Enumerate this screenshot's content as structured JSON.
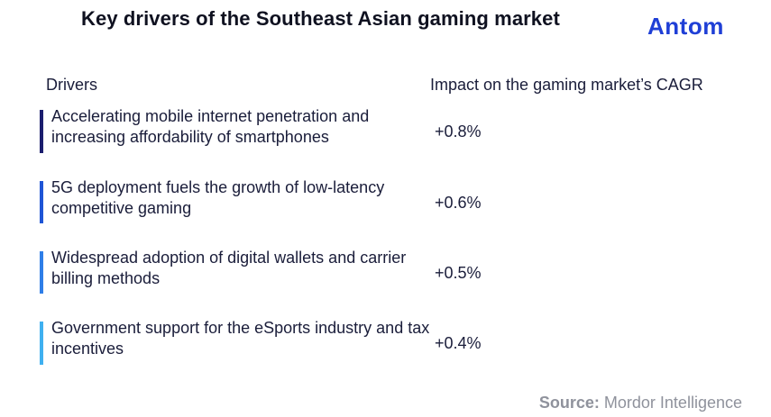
{
  "title": "Key drivers of the Southeast Asian gaming market",
  "brand": "Antom",
  "headers": {
    "drivers": "Drivers",
    "impact": "Impact on the gaming market’s CAGR"
  },
  "rows": [
    {
      "driver": "Accelerating mobile internet penetration and increasing affordability of smartphones",
      "impact": "+0.8%",
      "color": "#1b1e6e"
    },
    {
      "driver": "5G deployment fuels the growth of low-latency competitive gaming",
      "impact": "+0.6%",
      "color": "#1f55d6"
    },
    {
      "driver": "Widespread adoption of digital wallets and carrier billing methods",
      "impact": "+0.5%",
      "color": "#2f7ee8"
    },
    {
      "driver": "Government support for the eSports industry and tax incentives",
      "impact": "+0.4%",
      "color": "#3fb0f0"
    }
  ],
  "source": {
    "label": "Source:",
    "value": "Mordor Intelligence"
  }
}
